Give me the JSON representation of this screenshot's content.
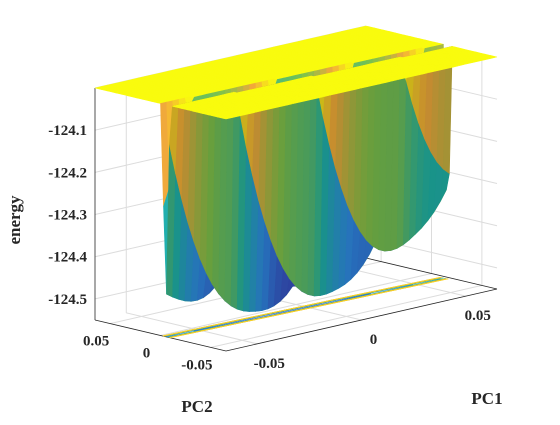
{
  "chart_data": {
    "type": "surface",
    "title": "",
    "xlabel": "PC1",
    "ylabel": "PC2",
    "zlabel": "energy",
    "zlim": [
      -124.55,
      -124.0
    ],
    "z_ticks": [
      -124.1,
      -124.2,
      -124.3,
      -124.4,
      -124.5
    ],
    "x_ticks": [
      -0.05,
      0,
      0.05
    ],
    "y_ticks": [
      0.05,
      0,
      -0.05
    ],
    "z_tick_labels": [
      "-124.1",
      "-124.2",
      "-124.3",
      "-124.4",
      "-124.5"
    ],
    "x_tick_labels": [
      "-0.05",
      "0",
      "0.05"
    ],
    "y_tick_labels": [
      "0.05",
      "0",
      "-0.05"
    ],
    "clip_level": -124.0,
    "minimum": {
      "PC1": -0.01,
      "PC2": -0.01,
      "energy": -124.54
    },
    "grid": true,
    "box": true,
    "colormap": "parula",
    "colormap_stops": [
      "#3E26A8",
      "#2F8BE6",
      "#1FB4A6",
      "#7FC24A",
      "#F3A83B",
      "#F9FB0E"
    ],
    "contour_projection": true
  }
}
